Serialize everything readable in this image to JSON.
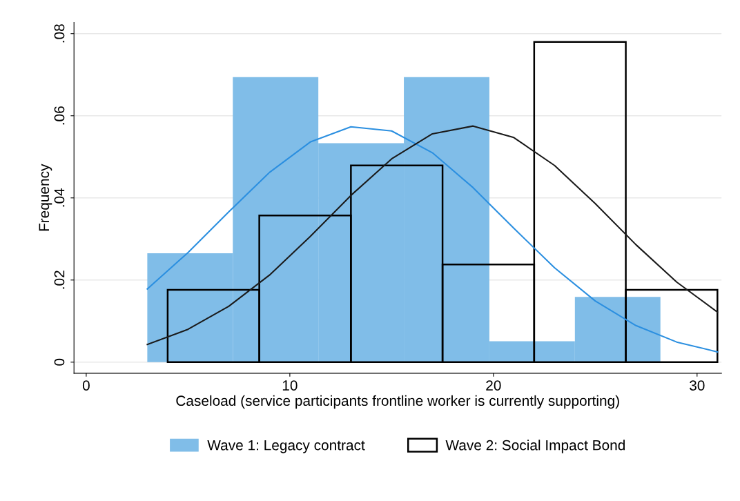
{
  "chart_data": {
    "type": "histogram",
    "xlabel": "Caseload (service participants frontline worker is currently supporting)",
    "ylabel": "Frequency",
    "series": [
      {
        "name": "Wave 1: Legacy contract",
        "color": "#80bde8",
        "bins": [
          3,
          7.2,
          11.4,
          15.6,
          19.8,
          24,
          28.2
        ],
        "values": [
          0.0265,
          0.0694,
          0.0533,
          0.0694,
          0.0051,
          0.0159
        ]
      },
      {
        "name": "Wave 2: Social Impact Bond",
        "color": "#000000",
        "bins": [
          4,
          8.5,
          13,
          17.5,
          22,
          26.5,
          31
        ],
        "values": [
          0.0176,
          0.0357,
          0.0479,
          0.0238,
          0.078,
          0.0176
        ]
      },
      {
        "type": "line",
        "color": "#2b8fe0",
        "x": [
          3,
          5,
          7,
          9,
          11,
          13,
          15,
          17,
          19,
          21,
          23,
          25,
          27,
          29,
          31
        ],
        "values": [
          0.0178,
          0.0267,
          0.0366,
          0.0462,
          0.0536,
          0.0573,
          0.0563,
          0.051,
          0.0425,
          0.0326,
          0.023,
          0.0149,
          0.0089,
          0.0049,
          0.0025
        ]
      },
      {
        "type": "line",
        "color": "#1a1a1a",
        "x": [
          3,
          5,
          7,
          9,
          11,
          13,
          15,
          17,
          19,
          21,
          23,
          25,
          27,
          29,
          31
        ],
        "values": [
          0.0043,
          0.008,
          0.0136,
          0.0212,
          0.0306,
          0.0406,
          0.0495,
          0.0556,
          0.0575,
          0.0547,
          0.0479,
          0.0386,
          0.0286,
          0.0195,
          0.0122
        ]
      }
    ],
    "xlim": [
      -0.6,
      31.2
    ],
    "xticks": [
      0,
      10,
      20,
      30
    ],
    "ylim": [
      -0.0027,
      0.0827
    ],
    "yticks": [
      {
        "value": 0,
        "label": "0"
      },
      {
        "value": 0.02,
        "label": ".02"
      },
      {
        "value": 0.04,
        "label": ".04"
      },
      {
        "value": 0.06,
        "label": ".06"
      },
      {
        "value": 0.08,
        "label": ".08"
      }
    ],
    "grid": "y",
    "legend": "bottom",
    "line_style": "solid",
    "marker": "none"
  }
}
